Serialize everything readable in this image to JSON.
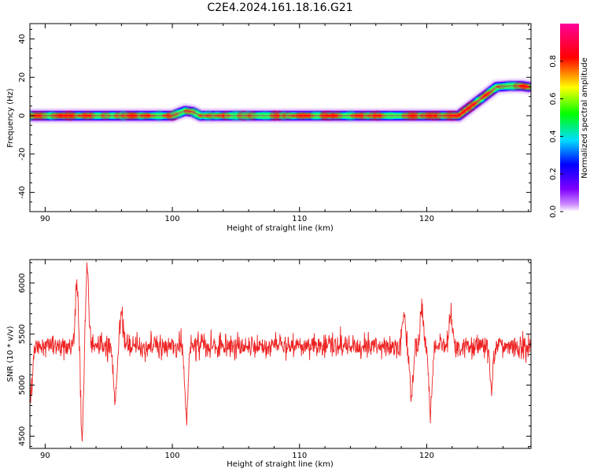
{
  "title": "C2E4.2024.161.18.16.G21",
  "colors": {
    "snr_line": "#ee2222",
    "axis": "#000000",
    "background": "#ffffff"
  },
  "chart_data": [
    {
      "type": "heatmap",
      "xlabel": "Height of straight line (km)",
      "ylabel": "Frequency (Hz)",
      "xlim": [
        88.8,
        128.2
      ],
      "ylim": [
        -50,
        48
      ],
      "xticks": [
        90,
        100,
        110,
        120
      ],
      "yticks": [
        40,
        20,
        0,
        -20,
        -40
      ],
      "colormap": "rainbow (purple-blue-cyan-green-yellow-red-magenta)",
      "colorbar": {
        "label": "Normalized spectral amplitude",
        "ticks": [
          0.0,
          0.2,
          0.4,
          0.6,
          0.8
        ],
        "range": [
          0,
          1
        ]
      },
      "ridge": {
        "x": [
          88.8,
          100.0,
          100.6,
          101.0,
          101.6,
          102.2,
          110.0,
          120.0,
          122.5,
          123.5,
          124.5,
          125.5,
          126.5,
          127.5,
          128.0
        ],
        "y": [
          0,
          0,
          1.5,
          2.5,
          2.0,
          0,
          0,
          0,
          0,
          5,
          10,
          15,
          15.5,
          15.5,
          15
        ],
        "peak_amplitude": 0.95
      }
    },
    {
      "type": "line",
      "xlabel": "Height of straight line (km)",
      "ylabel": "SNR (10 * v/v)",
      "xlim": [
        88.8,
        128.2
      ],
      "ylim": [
        4380,
        6230
      ],
      "xticks": [
        90,
        100,
        110,
        120
      ],
      "yticks": [
        6000,
        5500,
        5000,
        4500
      ],
      "series": [
        {
          "name": "",
          "baseline": 5380,
          "noise_amplitude": 150,
          "features": [
            {
              "x": 88.9,
              "y": 4850
            },
            {
              "x": 92.5,
              "y": 6100
            },
            {
              "x": 92.9,
              "y": 4420
            },
            {
              "x": 93.3,
              "y": 6230
            },
            {
              "x": 95.5,
              "y": 4750
            },
            {
              "x": 96.0,
              "y": 5750
            },
            {
              "x": 101.1,
              "y": 4620
            },
            {
              "x": 118.2,
              "y": 5750
            },
            {
              "x": 118.8,
              "y": 4820
            },
            {
              "x": 119.6,
              "y": 5850
            },
            {
              "x": 120.3,
              "y": 4580
            },
            {
              "x": 121.9,
              "y": 5760
            },
            {
              "x": 125.1,
              "y": 4900
            }
          ]
        }
      ]
    }
  ]
}
